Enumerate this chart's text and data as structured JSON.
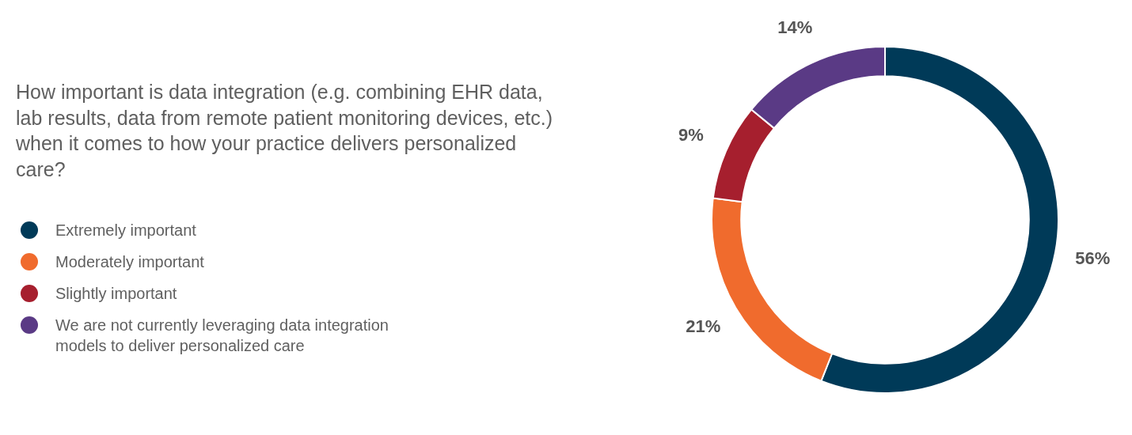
{
  "chart_data": {
    "type": "donut",
    "title": "How important is data integration (e.g. combining EHR data, lab results, data from remote patient monitoring devices, etc.) when it comes to how your practice delivers personalized care?",
    "categories": [
      "Extremely important",
      "Moderately important",
      "Slightly important",
      "We are not currently leveraging data integration models to deliver personalized care"
    ],
    "values": [
      56,
      21,
      9,
      14
    ],
    "colors": [
      "#003a58",
      "#f06b2d",
      "#a61f2e",
      "#5a3a85"
    ],
    "value_labels": [
      "56%",
      "21%",
      "9%",
      "14%"
    ],
    "legend": "left"
  }
}
